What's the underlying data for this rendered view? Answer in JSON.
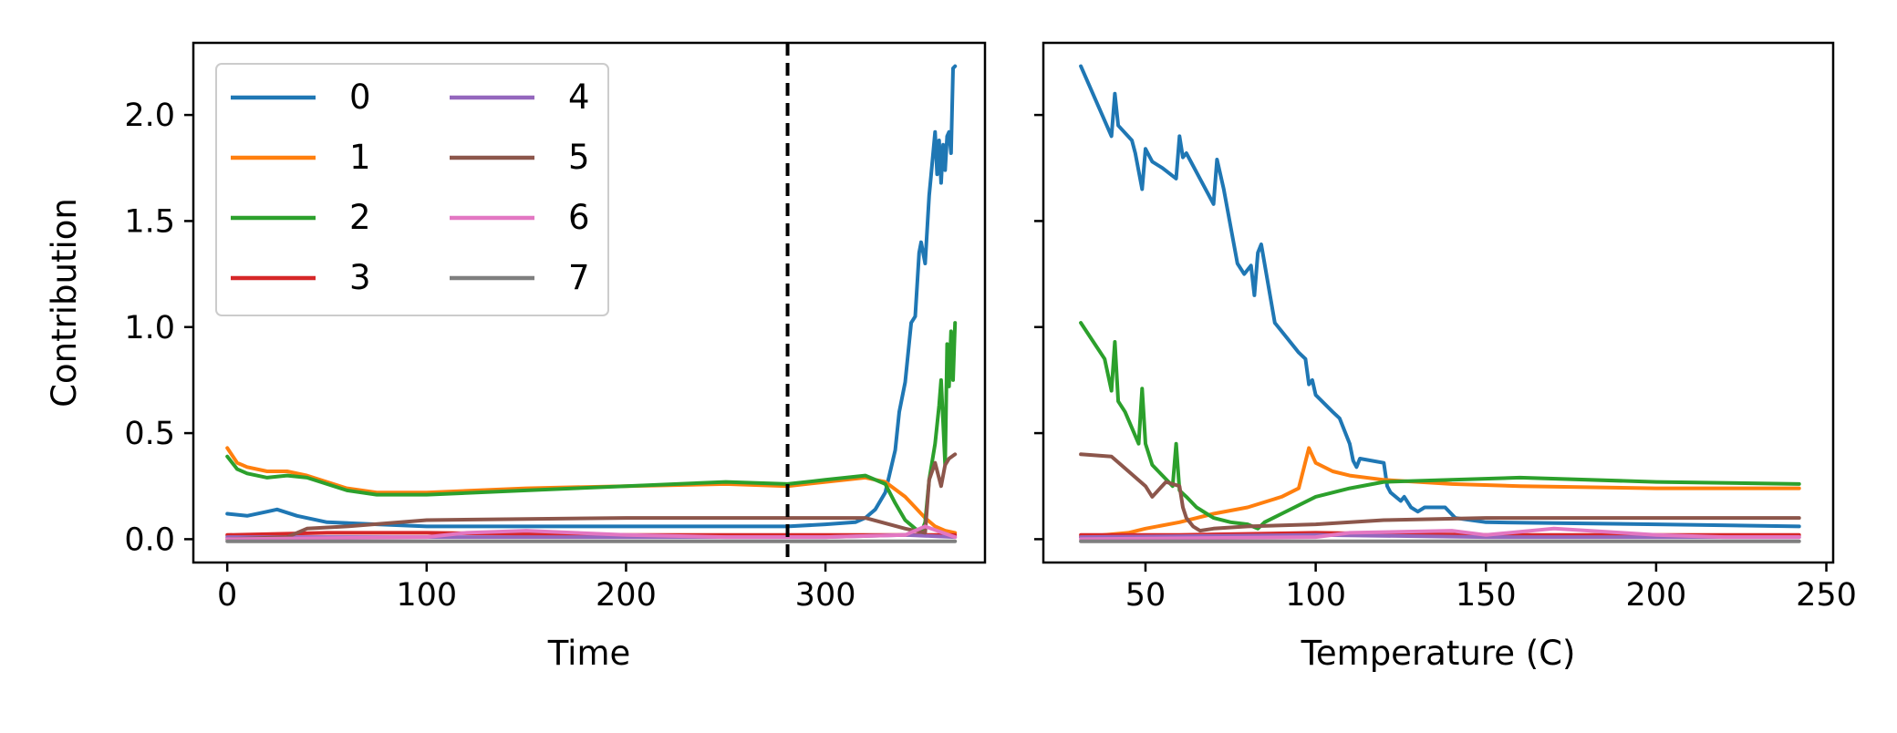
{
  "chart_data": [
    {
      "type": "line",
      "xlabel": "Time",
      "ylabel": "Contribution",
      "xlim": [
        -17,
        380
      ],
      "ylim": [
        -0.11,
        2.34
      ],
      "xticks": [
        0,
        100,
        200,
        300
      ],
      "xtick_labels": [
        "0",
        "100",
        "200",
        "300"
      ],
      "yticks": [
        0.0,
        0.5,
        1.0,
        1.5,
        2.0
      ],
      "ytick_labels": [
        "0.0",
        "0.5",
        "1.0",
        "1.5",
        "2.0"
      ],
      "vline": {
        "x": 281,
        "style": "dashed",
        "color": "#000000"
      },
      "legend": {
        "placement": "top-left",
        "columns": 2
      },
      "grid": false,
      "series": [
        {
          "name": "0",
          "color": "#1f77b4",
          "x": [
            0,
            10,
            20,
            25,
            35,
            50,
            75,
            100,
            150,
            200,
            250,
            281,
            300,
            315,
            320,
            325,
            330,
            335,
            337,
            340,
            343,
            345,
            347,
            348,
            350,
            352,
            353,
            355,
            356,
            357,
            358,
            359,
            360,
            361,
            362,
            363,
            364,
            365
          ],
          "y": [
            0.12,
            0.11,
            0.13,
            0.14,
            0.11,
            0.08,
            0.07,
            0.06,
            0.06,
            0.06,
            0.06,
            0.06,
            0.07,
            0.08,
            0.1,
            0.14,
            0.22,
            0.42,
            0.6,
            0.74,
            1.02,
            1.05,
            1.35,
            1.4,
            1.3,
            1.62,
            1.72,
            1.92,
            1.72,
            1.88,
            1.68,
            1.86,
            1.74,
            1.9,
            1.92,
            1.82,
            2.22,
            2.23
          ]
        },
        {
          "name": "1",
          "color": "#ff7f0e",
          "x": [
            0,
            5,
            10,
            20,
            30,
            40,
            50,
            60,
            75,
            100,
            150,
            200,
            250,
            281,
            300,
            320,
            330,
            340,
            345,
            350,
            355,
            360,
            365
          ],
          "y": [
            0.43,
            0.36,
            0.34,
            0.32,
            0.32,
            0.3,
            0.27,
            0.24,
            0.22,
            0.22,
            0.24,
            0.25,
            0.26,
            0.25,
            0.27,
            0.29,
            0.27,
            0.2,
            0.15,
            0.1,
            0.06,
            0.04,
            0.03
          ]
        },
        {
          "name": "2",
          "color": "#2ca02c",
          "x": [
            0,
            5,
            10,
            20,
            30,
            40,
            50,
            60,
            75,
            100,
            150,
            200,
            250,
            281,
            300,
            320,
            330,
            335,
            340,
            345,
            348,
            350,
            352,
            355,
            357,
            358,
            360,
            361,
            362,
            363,
            364,
            365
          ],
          "y": [
            0.39,
            0.33,
            0.31,
            0.29,
            0.3,
            0.29,
            0.26,
            0.23,
            0.21,
            0.21,
            0.23,
            0.25,
            0.27,
            0.26,
            0.28,
            0.3,
            0.26,
            0.17,
            0.09,
            0.05,
            0.03,
            0.08,
            0.28,
            0.45,
            0.63,
            0.75,
            0.35,
            0.92,
            0.72,
            0.98,
            0.75,
            1.02
          ]
        },
        {
          "name": "3",
          "color": "#d62728",
          "x": [
            0,
            50,
            100,
            200,
            281,
            300,
            340,
            365
          ],
          "y": [
            0.02,
            0.03,
            0.03,
            0.02,
            0.02,
            0.02,
            0.02,
            0.02
          ]
        },
        {
          "name": "4",
          "color": "#9467bd",
          "x": [
            0,
            100,
            200,
            300,
            340,
            365
          ],
          "y": [
            0.01,
            0.01,
            0.01,
            0.01,
            0.02,
            0.01
          ]
        },
        {
          "name": "5",
          "color": "#8c564b",
          "x": [
            0,
            30,
            40,
            60,
            100,
            200,
            281,
            320,
            340,
            350,
            352,
            355,
            358,
            360,
            362,
            365
          ],
          "y": [
            0.0,
            0.01,
            0.05,
            0.06,
            0.09,
            0.1,
            0.1,
            0.1,
            0.05,
            0.03,
            0.28,
            0.36,
            0.25,
            0.35,
            0.38,
            0.4
          ]
        },
        {
          "name": "6",
          "color": "#e377c2",
          "x": [
            0,
            100,
            120,
            150,
            200,
            250,
            300,
            340,
            350,
            365
          ],
          "y": [
            0.0,
            0.01,
            0.03,
            0.04,
            0.02,
            0.01,
            0.01,
            0.02,
            0.06,
            0.01
          ]
        },
        {
          "name": "7",
          "color": "#7f7f7f",
          "x": [
            0,
            365
          ],
          "y": [
            -0.01,
            -0.01
          ]
        }
      ]
    },
    {
      "type": "line",
      "xlabel": "Temperature (C)",
      "ylabel": "",
      "xlim": [
        20,
        252
      ],
      "ylim": [
        -0.11,
        2.34
      ],
      "xticks": [
        50,
        100,
        150,
        200,
        250
      ],
      "xtick_labels": [
        "50",
        "100",
        "150",
        "200",
        "250"
      ],
      "yticks": [
        0.0,
        0.5,
        1.0,
        1.5,
        2.0
      ],
      "ytick_labels": [
        "",
        "",
        "",
        "",
        ""
      ],
      "grid": false,
      "series": [
        {
          "name": "0",
          "color": "#1f77b4",
          "x": [
            31,
            40,
            41,
            42,
            46,
            47,
            49,
            50,
            52,
            55,
            59,
            60,
            61,
            62,
            66,
            70,
            71,
            73,
            77,
            79,
            81,
            82,
            83,
            84,
            88,
            90,
            95,
            97,
            98,
            99,
            100,
            105,
            107,
            110,
            111,
            112,
            113,
            120,
            121,
            122,
            125,
            126,
            128,
            130,
            132,
            135,
            138,
            141,
            150,
            200,
            242
          ],
          "y": [
            2.23,
            1.9,
            2.1,
            1.95,
            1.88,
            1.82,
            1.65,
            1.84,
            1.78,
            1.75,
            1.7,
            1.9,
            1.8,
            1.82,
            1.7,
            1.58,
            1.79,
            1.65,
            1.3,
            1.25,
            1.29,
            1.15,
            1.35,
            1.39,
            1.02,
            0.98,
            0.88,
            0.85,
            0.73,
            0.75,
            0.68,
            0.6,
            0.57,
            0.45,
            0.37,
            0.34,
            0.38,
            0.36,
            0.25,
            0.22,
            0.18,
            0.2,
            0.15,
            0.13,
            0.15,
            0.15,
            0.15,
            0.1,
            0.08,
            0.07,
            0.06
          ]
        },
        {
          "name": "1",
          "color": "#ff7f0e",
          "x": [
            31,
            45,
            50,
            60,
            70,
            80,
            90,
            95,
            98,
            100,
            105,
            110,
            120,
            140,
            160,
            200,
            242
          ],
          "y": [
            0.01,
            0.03,
            0.05,
            0.08,
            0.12,
            0.15,
            0.2,
            0.24,
            0.43,
            0.36,
            0.32,
            0.3,
            0.28,
            0.26,
            0.25,
            0.24,
            0.24
          ]
        },
        {
          "name": "2",
          "color": "#2ca02c",
          "x": [
            31,
            38,
            40,
            41,
            42,
            44,
            48,
            49,
            50,
            52,
            55,
            58,
            59,
            60,
            62,
            65,
            68,
            70,
            75,
            80,
            83,
            85,
            90,
            100,
            110,
            120,
            140,
            160,
            200,
            242
          ],
          "y": [
            1.02,
            0.85,
            0.7,
            0.93,
            0.65,
            0.6,
            0.45,
            0.71,
            0.45,
            0.35,
            0.3,
            0.25,
            0.45,
            0.23,
            0.2,
            0.15,
            0.12,
            0.1,
            0.08,
            0.07,
            0.05,
            0.08,
            0.12,
            0.2,
            0.24,
            0.27,
            0.28,
            0.29,
            0.27,
            0.26
          ]
        },
        {
          "name": "3",
          "color": "#d62728",
          "x": [
            31,
            60,
            100,
            150,
            200,
            242
          ],
          "y": [
            0.02,
            0.02,
            0.03,
            0.02,
            0.02,
            0.02
          ]
        },
        {
          "name": "4",
          "color": "#9467bd",
          "x": [
            31,
            100,
            150,
            200,
            242
          ],
          "y": [
            0.01,
            0.02,
            0.01,
            0.01,
            0.01
          ]
        },
        {
          "name": "5",
          "color": "#8c564b",
          "x": [
            31,
            40,
            50,
            52,
            56,
            60,
            61,
            62,
            64,
            66,
            70,
            80,
            100,
            120,
            150,
            200,
            242
          ],
          "y": [
            0.4,
            0.39,
            0.25,
            0.2,
            0.27,
            0.25,
            0.15,
            0.1,
            0.06,
            0.04,
            0.05,
            0.06,
            0.07,
            0.09,
            0.1,
            0.1,
            0.1
          ]
        },
        {
          "name": "6",
          "color": "#e377c2",
          "x": [
            31,
            100,
            110,
            140,
            150,
            170,
            190,
            200,
            220,
            242
          ],
          "y": [
            0.0,
            0.01,
            0.03,
            0.04,
            0.02,
            0.05,
            0.03,
            0.02,
            0.01,
            0.01
          ]
        },
        {
          "name": "7",
          "color": "#7f7f7f",
          "x": [
            31,
            242
          ],
          "y": [
            -0.01,
            -0.01
          ]
        }
      ]
    }
  ]
}
